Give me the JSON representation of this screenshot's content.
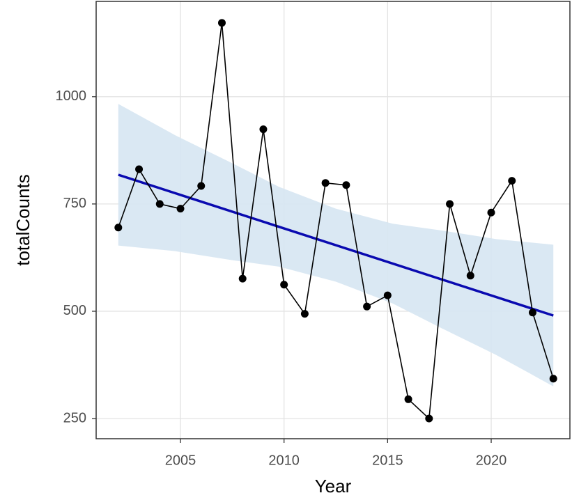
{
  "chart_data": {
    "type": "line",
    "xlabel": "Year",
    "ylabel": "totalCounts",
    "x": [
      2002,
      2003,
      2004,
      2005,
      2006,
      2007,
      2008,
      2009,
      2010,
      2011,
      2012,
      2013,
      2014,
      2015,
      2016,
      2017,
      2018,
      2019,
      2020,
      2021,
      2022,
      2023
    ],
    "values": [
      695,
      831,
      750,
      739,
      792,
      1172,
      576,
      924,
      562,
      494,
      799,
      794,
      511,
      537,
      295,
      250,
      750,
      583,
      730,
      804,
      497,
      343
    ],
    "color": "#000000",
    "trend": {
      "x": [
        2002,
        2023
      ],
      "values": [
        818,
        490
      ],
      "color": "#0a0ab0"
    },
    "band": {
      "x": [
        2002,
        2004.75,
        2007.5,
        2009.75,
        2012.5,
        2015.25,
        2017.5,
        2020.25,
        2023
      ],
      "lower": [
        653,
        640,
        619,
        604,
        569,
        518,
        463,
        398,
        325
      ],
      "upper": [
        983,
        910,
        845,
        790,
        739,
        704,
        689,
        668,
        655
      ],
      "color": "#d6e6f2"
    },
    "xlim": [
      2000.93,
      2023.8
    ],
    "ylim": [
      203,
      1222
    ],
    "xticks": [
      2005,
      2010,
      2015,
      2020
    ],
    "yticks": [
      250,
      500,
      750,
      1000
    ],
    "grid": true
  }
}
